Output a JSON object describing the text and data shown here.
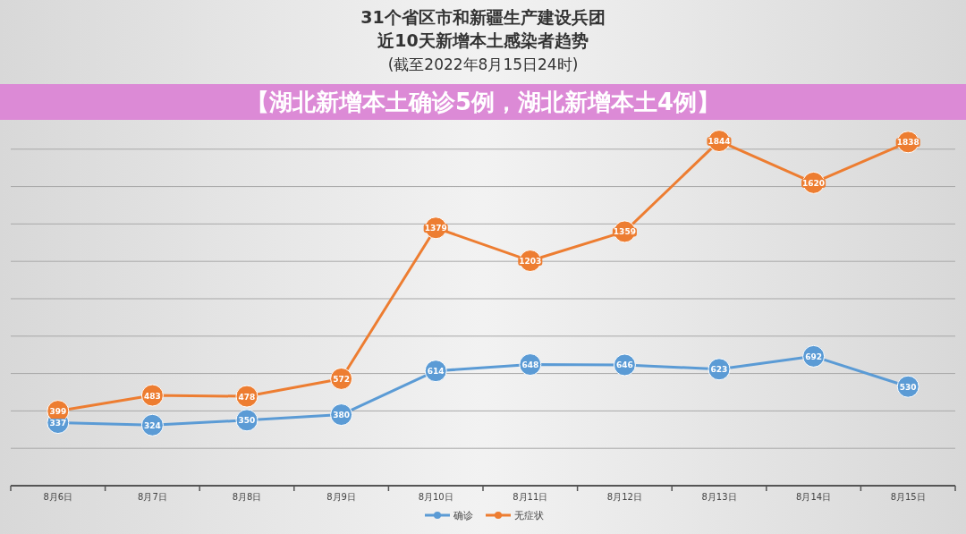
{
  "chart_data": {
    "type": "line",
    "title": "31个省区市和新疆生产建设兵团近10天新增本土感染者趋势",
    "subtitle": "(截至2022年8月15日24时)",
    "annotations": [
      "【湖北新增本土确诊5例，湖北新增本土4例】"
    ],
    "categories": [
      "8月6日",
      "8月7日",
      "8月8日",
      "8月9日",
      "8月10日",
      "8月11日",
      "8月12日",
      "8月13日",
      "8月14日",
      "8月15日"
    ],
    "series": [
      {
        "name": "确诊",
        "color": "#5b9bd5",
        "values": [
          337,
          324,
          350,
          380,
          614,
          648,
          646,
          623,
          692,
          530
        ]
      },
      {
        "name": "无症状",
        "color": "#ed7d31",
        "values": [
          399,
          483,
          478,
          572,
          1379,
          1203,
          1359,
          1844,
          1620,
          1838
        ]
      }
    ],
    "yticks": [
      {
        "value": 0,
        "label": null
      },
      {
        "value": 200,
        "label": null
      },
      {
        "value": 400,
        "label": null
      },
      {
        "value": 600,
        "label": null
      },
      {
        "value": 800,
        "label": null
      },
      {
        "value": 1000,
        "label": null
      },
      {
        "value": 1200,
        "label": null
      },
      {
        "value": 1400,
        "label": null
      },
      {
        "value": 1600,
        "label": null
      },
      {
        "value": 1800,
        "label": null
      }
    ],
    "tick_labels": "x",
    "grid": "y",
    "legend": "bottom",
    "data_labels": true,
    "marker": "circle",
    "line_style": "solid"
  }
}
